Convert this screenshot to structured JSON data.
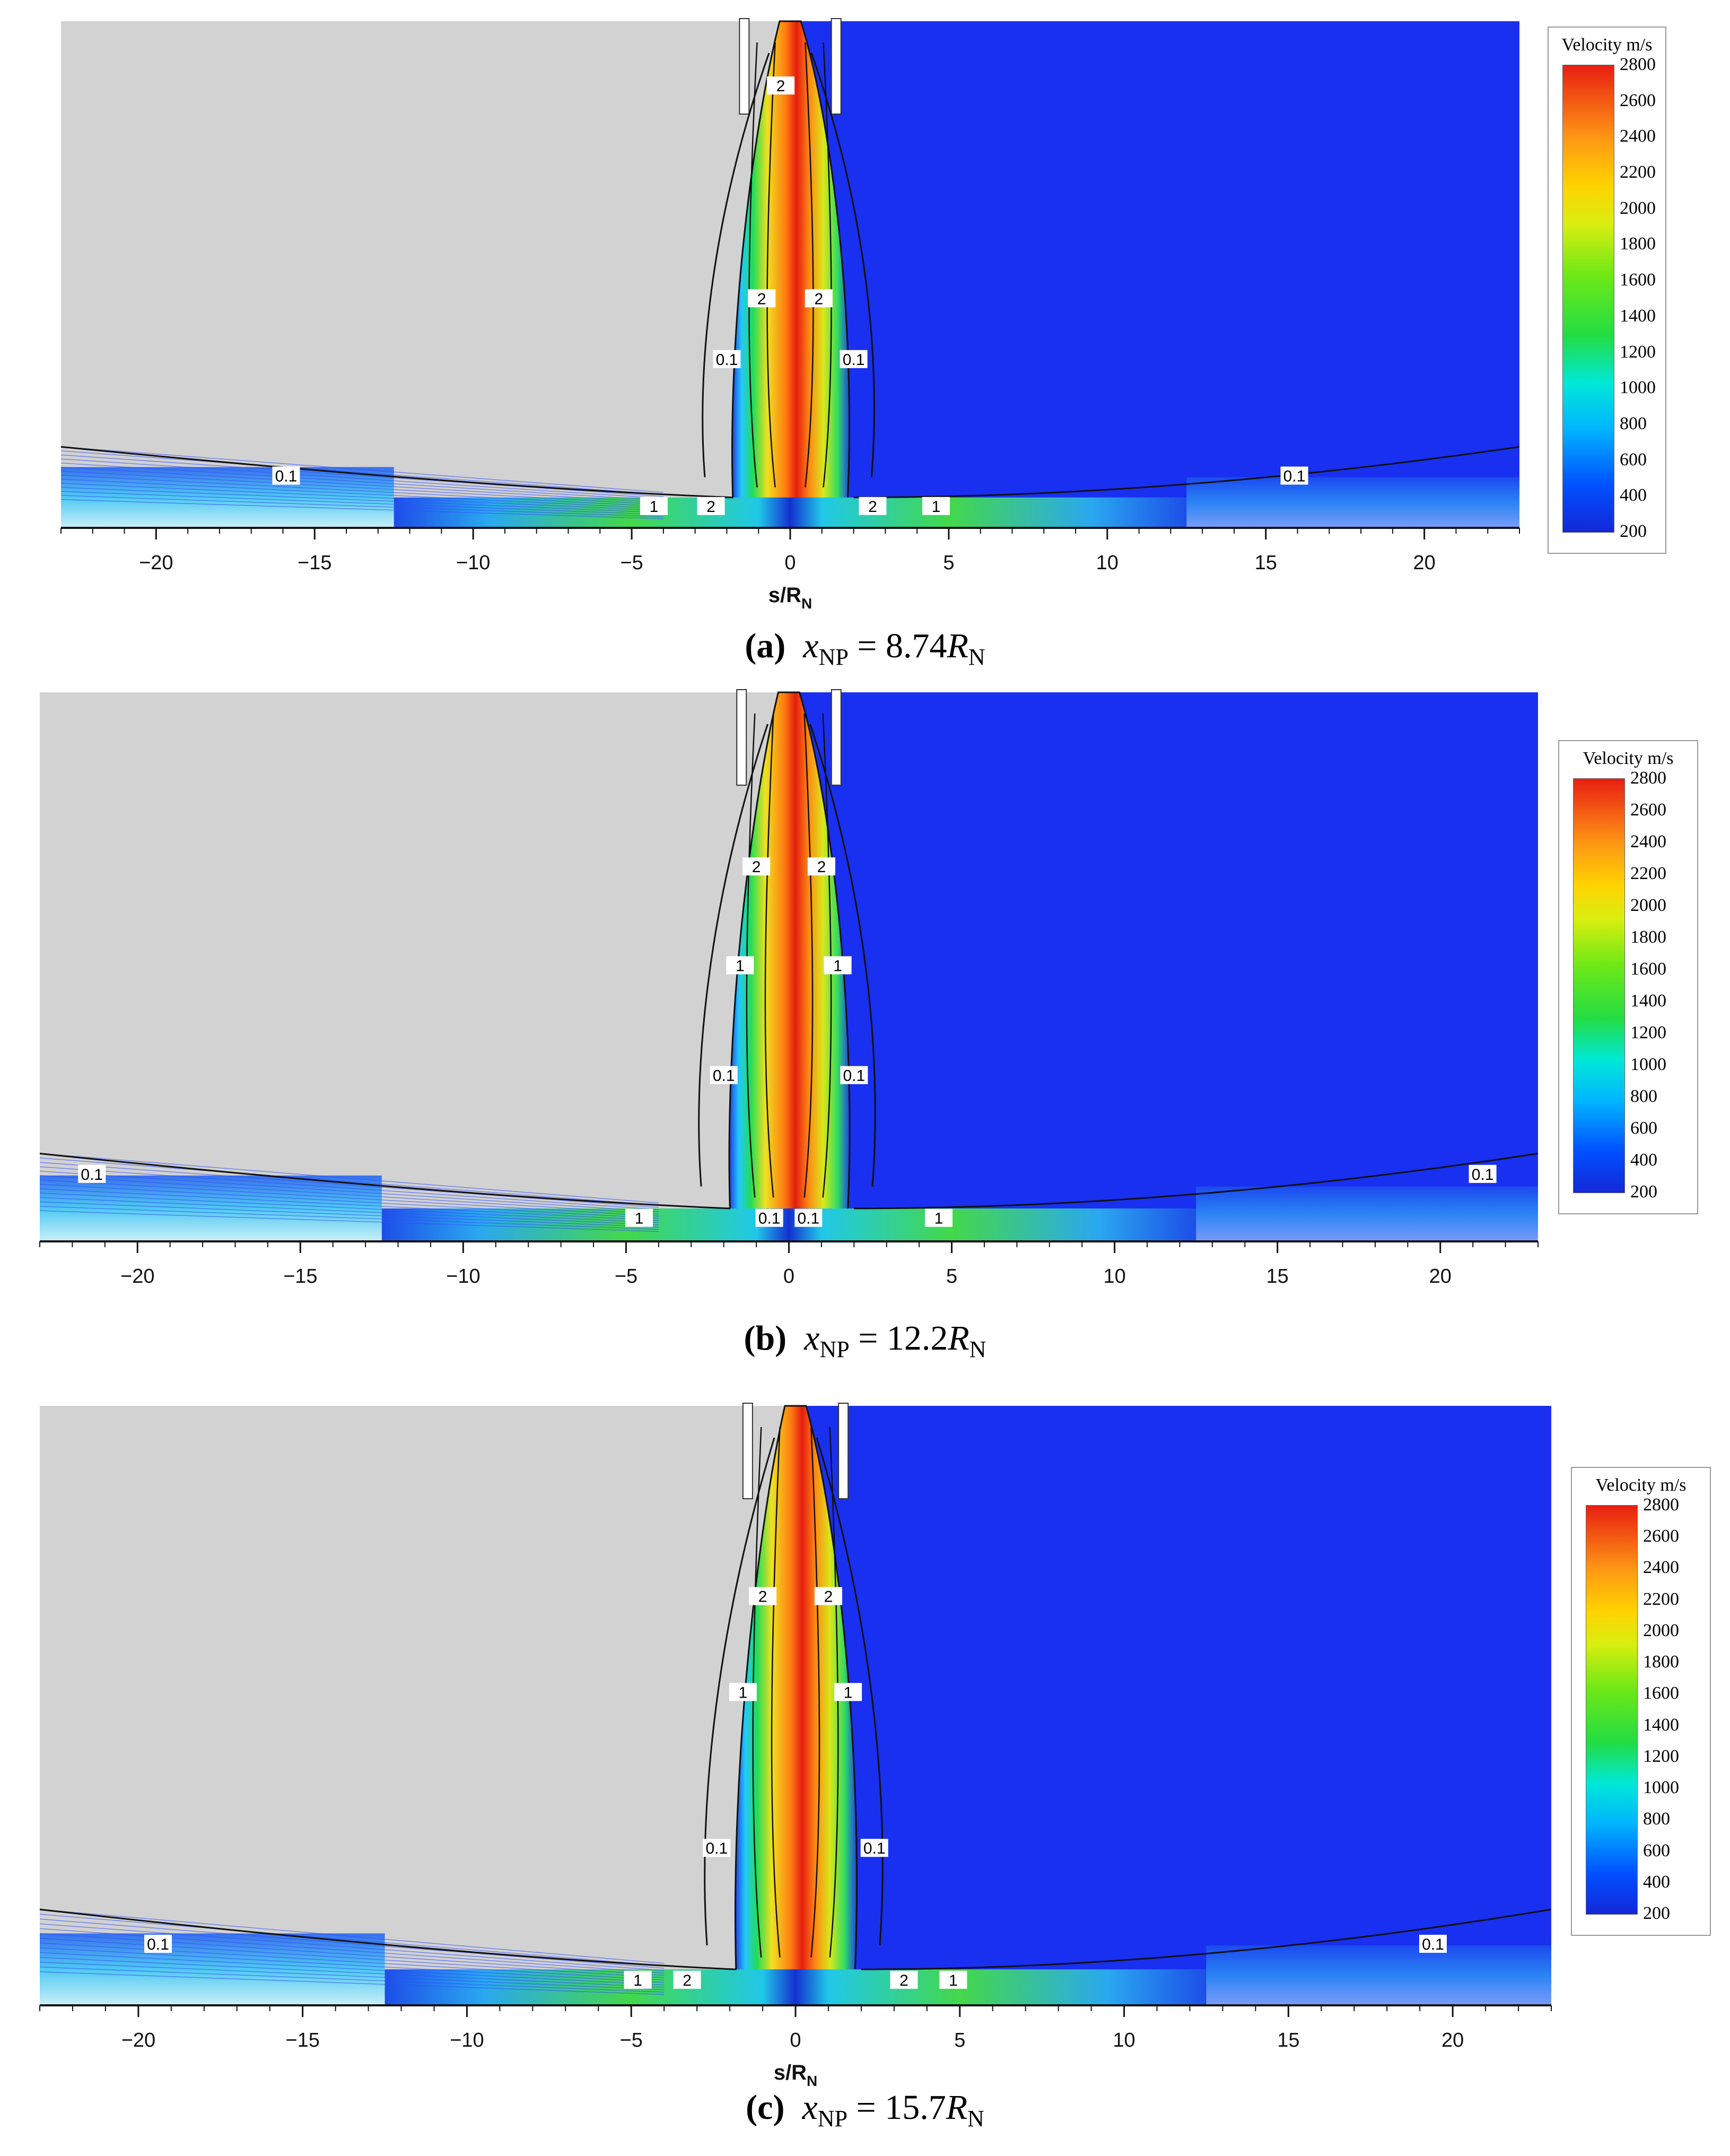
{
  "chart_data": [
    {
      "type": "contour",
      "panel_label": "(a)",
      "caption_var": "x",
      "caption_sub": "NP",
      "caption_eq": " = 8.74",
      "caption_unit": "R",
      "caption_unit_sub": "N",
      "xlabel": "s/R",
      "xlabel_sub": "N",
      "xlim": [
        -23,
        23
      ],
      "xticks": [
        -20,
        -15,
        -10,
        -5,
        0,
        5,
        10,
        15,
        20
      ],
      "xtick_labels": [
        "−20",
        "−15",
        "−10",
        "−5",
        "0",
        "5",
        "10",
        "15",
        "20"
      ],
      "colorbar": {
        "title": "Velocity m/s",
        "ticks": [
          2800,
          2600,
          2400,
          2200,
          2000,
          1800,
          1600,
          1400,
          1200,
          1000,
          800,
          600,
          400,
          200
        ],
        "range": [
          200,
          2800
        ]
      },
      "contour_labels": [
        {
          "text": "0.1",
          "x": -15.9,
          "h": 0.1
        },
        {
          "text": "0.1",
          "x": -2.0,
          "h": 0.33
        },
        {
          "text": "0.1",
          "x": 2.0,
          "h": 0.33
        },
        {
          "text": "0.1",
          "x": 15.9,
          "h": 0.1
        },
        {
          "text": "2",
          "x": -0.9,
          "h": 0.45
        },
        {
          "text": "2",
          "x": 0.9,
          "h": 0.45
        },
        {
          "text": "2",
          "x": -0.3,
          "h": 0.87
        },
        {
          "text": "1",
          "x": -4.3,
          "h": 0.04
        },
        {
          "text": "2",
          "x": -2.5,
          "h": 0.04
        },
        {
          "text": "2",
          "x": 2.6,
          "h": 0.04
        },
        {
          "text": "1",
          "x": 4.6,
          "h": 0.04
        }
      ]
    },
    {
      "type": "contour",
      "panel_label": "(b)",
      "caption_var": "x",
      "caption_sub": "NP",
      "caption_eq": " = 12.2",
      "caption_unit": "R",
      "caption_unit_sub": "N",
      "xlabel": "",
      "xlabel_sub": "",
      "xlim": [
        -23,
        23
      ],
      "xticks": [
        -20,
        -15,
        -10,
        -5,
        0,
        5,
        10,
        15,
        20
      ],
      "xtick_labels": [
        "−20",
        "−15",
        "−10",
        "−5",
        "0",
        "5",
        "10",
        "15",
        "20"
      ],
      "colorbar": {
        "title": "Velocity m/s",
        "ticks": [
          2800,
          2600,
          2400,
          2200,
          2000,
          1800,
          1600,
          1400,
          1200,
          1000,
          800,
          600,
          400,
          200
        ],
        "range": [
          200,
          2800
        ]
      },
      "contour_labels": [
        {
          "text": "0.1",
          "x": -21.4,
          "h": 0.12
        },
        {
          "text": "0.1",
          "x": -2.0,
          "h": 0.3
        },
        {
          "text": "0.1",
          "x": 2.0,
          "h": 0.3
        },
        {
          "text": "0.1",
          "x": 21.3,
          "h": 0.12
        },
        {
          "text": "2",
          "x": -1.0,
          "h": 0.68
        },
        {
          "text": "2",
          "x": 1.0,
          "h": 0.68
        },
        {
          "text": "1",
          "x": -1.5,
          "h": 0.5
        },
        {
          "text": "1",
          "x": 1.5,
          "h": 0.5
        },
        {
          "text": "1",
          "x": -4.6,
          "h": 0.04
        },
        {
          "text": "1",
          "x": 4.6,
          "h": 0.04
        },
        {
          "text": "0.1",
          "x": -0.6,
          "h": 0.04
        },
        {
          "text": "0.1",
          "x": 0.6,
          "h": 0.04
        }
      ]
    },
    {
      "type": "contour",
      "panel_label": "(c)",
      "caption_var": "x",
      "caption_sub": "NP",
      "caption_eq": " = 15.7",
      "caption_unit": "R",
      "caption_unit_sub": "N",
      "xlabel": "s/R",
      "xlabel_sub": "N",
      "xlim": [
        -23,
        23
      ],
      "xticks": [
        -20,
        -15,
        -10,
        -5,
        0,
        5,
        10,
        15,
        20
      ],
      "xtick_labels": [
        "−20",
        "−15",
        "−10",
        "−5",
        "0",
        "5",
        "10",
        "15",
        "20"
      ],
      "colorbar": {
        "title": "Velocity m/s",
        "ticks": [
          2800,
          2600,
          2400,
          2200,
          2000,
          1800,
          1600,
          1400,
          1200,
          1000,
          800,
          600,
          400,
          200
        ],
        "range": [
          200,
          2800
        ]
      },
      "contour_labels": [
        {
          "text": "0.1",
          "x": -19.4,
          "h": 0.1
        },
        {
          "text": "0.1",
          "x": -2.4,
          "h": 0.26
        },
        {
          "text": "0.1",
          "x": 2.4,
          "h": 0.26
        },
        {
          "text": "0.1",
          "x": 19.4,
          "h": 0.1
        },
        {
          "text": "2",
          "x": -1.0,
          "h": 0.68
        },
        {
          "text": "2",
          "x": 1.0,
          "h": 0.68
        },
        {
          "text": "1",
          "x": -1.6,
          "h": 0.52
        },
        {
          "text": "1",
          "x": 1.6,
          "h": 0.52
        },
        {
          "text": "1",
          "x": -4.8,
          "h": 0.04
        },
        {
          "text": "2",
          "x": -3.3,
          "h": 0.04
        },
        {
          "text": "2",
          "x": 3.3,
          "h": 0.04
        },
        {
          "text": "1",
          "x": 4.8,
          "h": 0.04
        }
      ]
    }
  ]
}
